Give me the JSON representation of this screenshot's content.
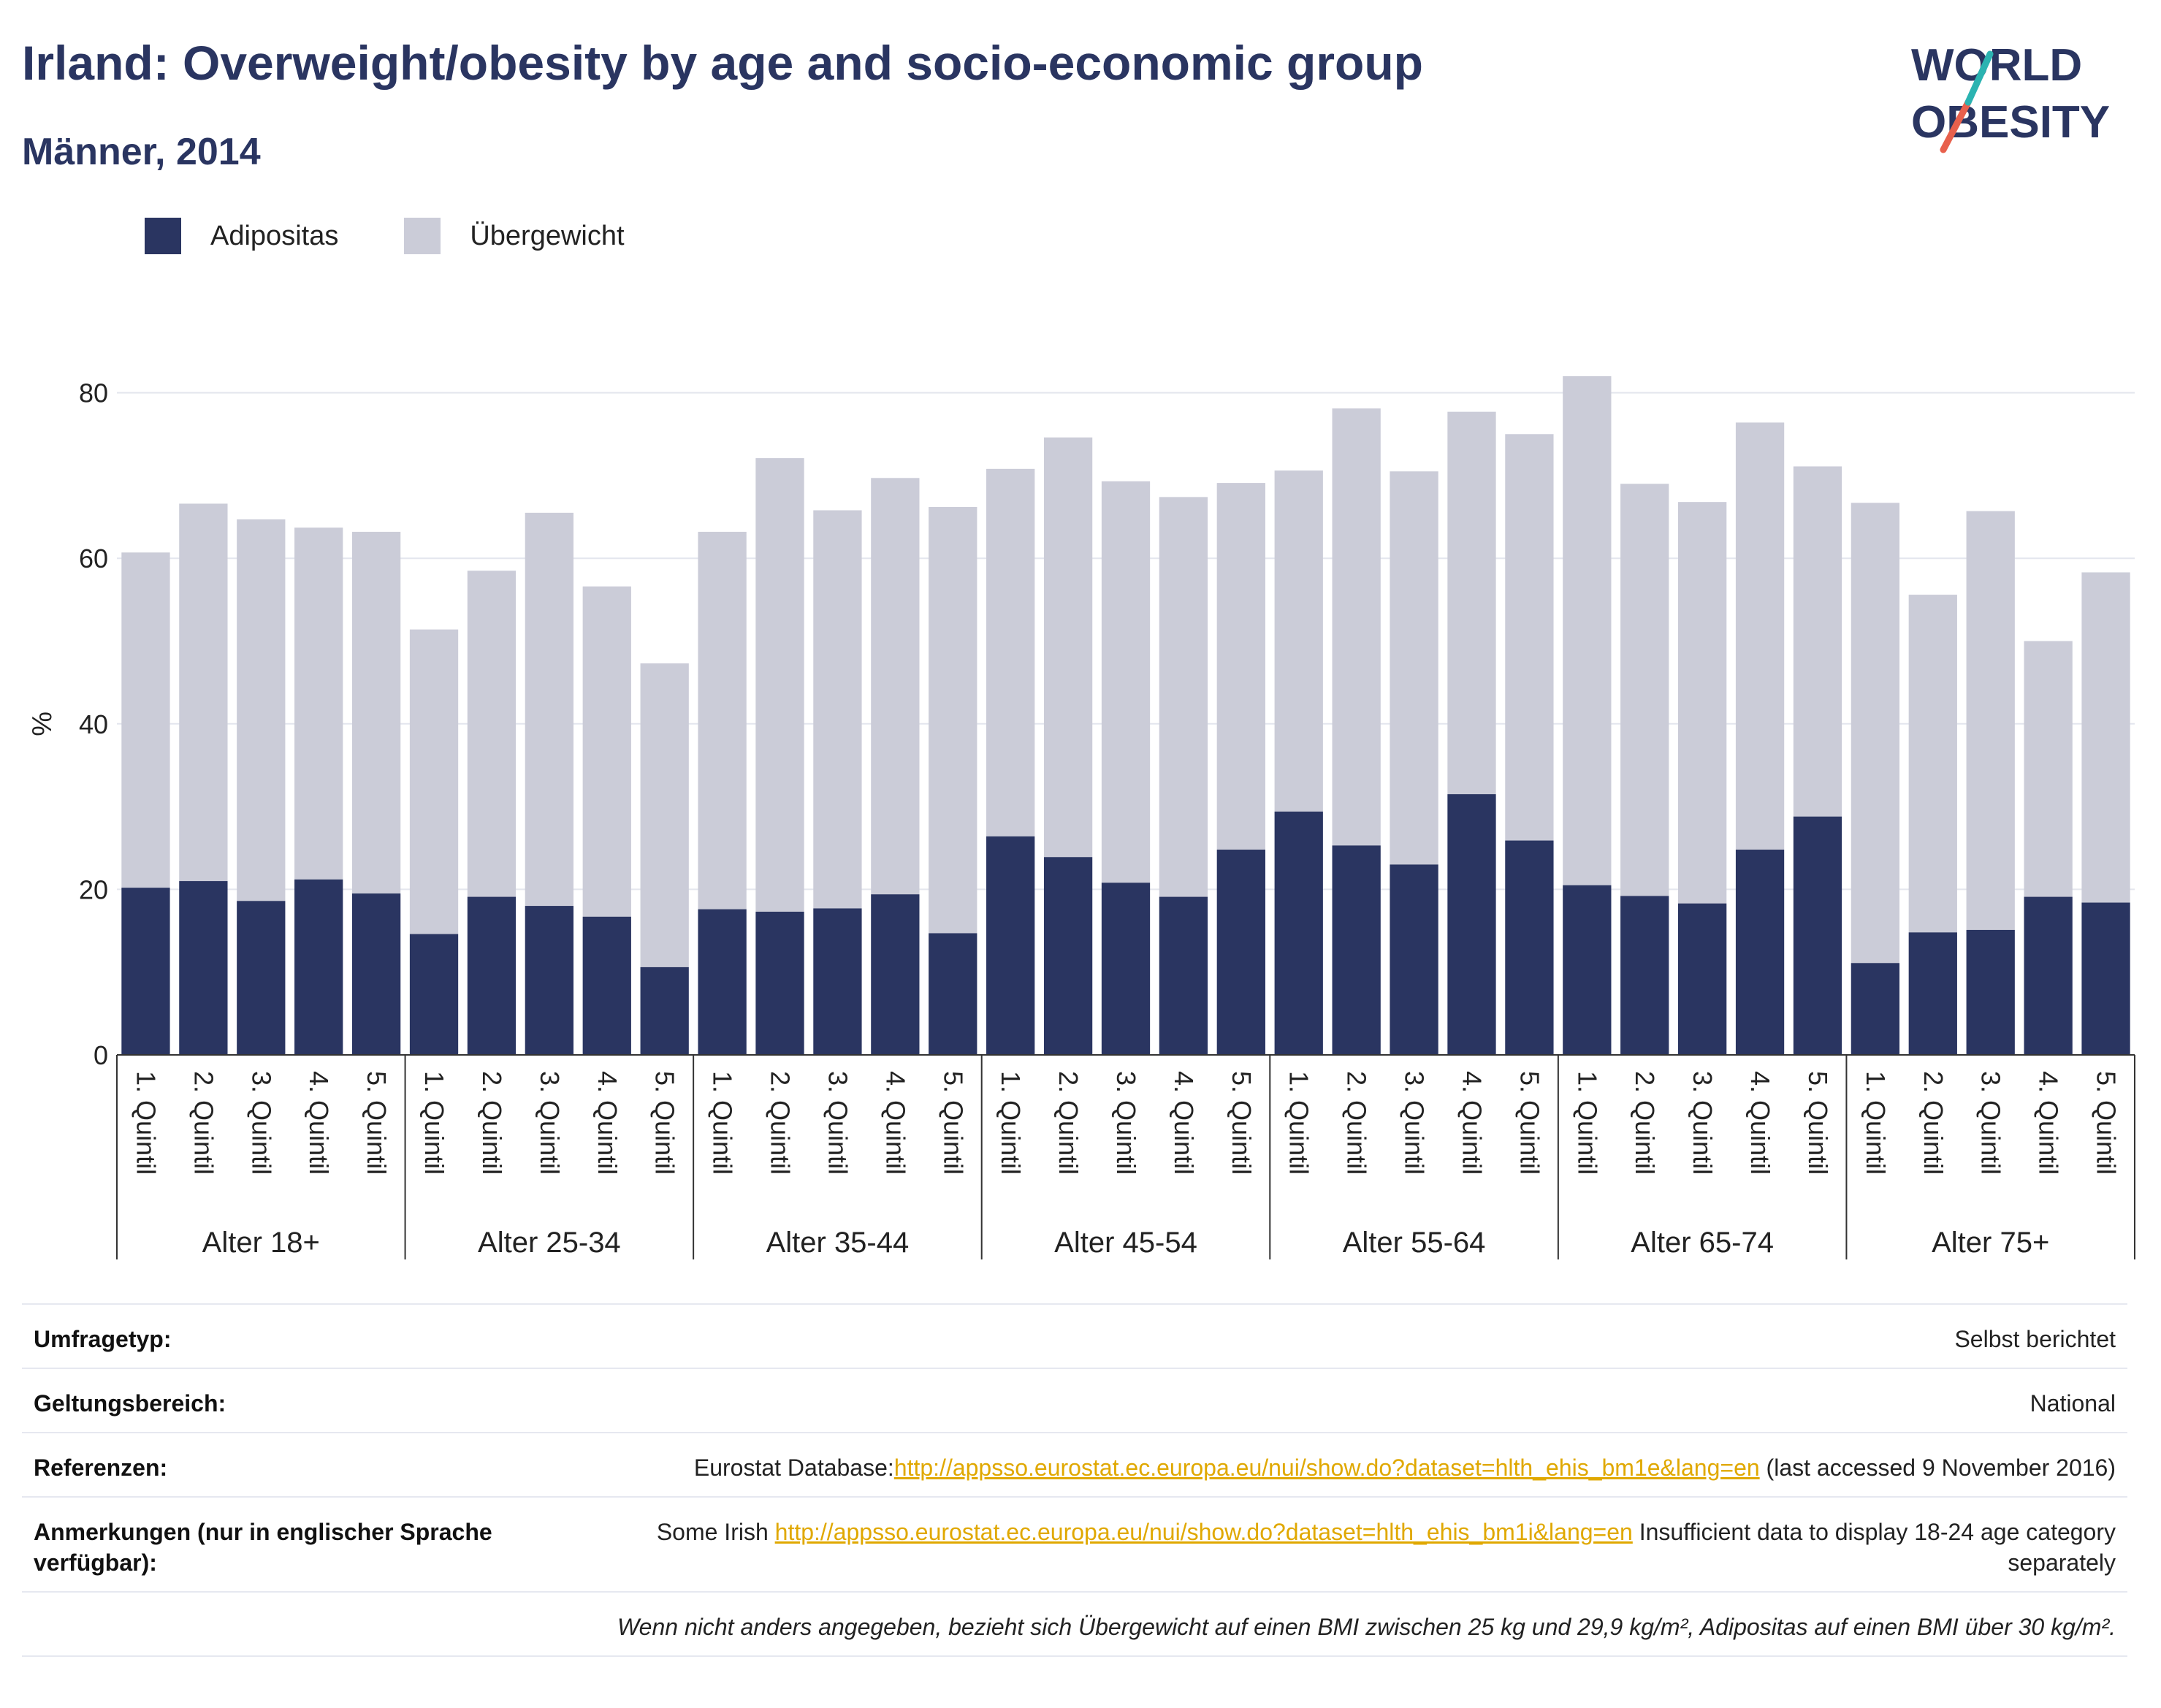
{
  "header": {
    "title": "Irland: Overweight/obesity by age and socio-economic group",
    "subtitle": "Männer, 2014"
  },
  "logo": {
    "line1": "WORLD",
    "line2": "OBESITY"
  },
  "colors": {
    "obesity": "#2a3561",
    "overweight": "#cbccd8",
    "accent_teal": "#2bb3b1",
    "accent_red": "#e8604c"
  },
  "chart_data": {
    "type": "bar",
    "stacked": true,
    "ylabel": "%",
    "ylim": [
      0,
      90
    ],
    "yticks": [
      0,
      20,
      40,
      60,
      80
    ],
    "grid": true,
    "legend_position": "top-left",
    "legend": [
      "Adipositas",
      "Übergewicht"
    ],
    "subcategories": [
      "1. Quintil",
      "2. Quintil",
      "3. Quintil",
      "4. Quintil",
      "5. Quintil"
    ],
    "groups": [
      "Alter 18+",
      "Alter 25-34",
      "Alter 35-44",
      "Alter 45-54",
      "Alter 55-64",
      "Alter 65-74",
      "Alter 75+"
    ],
    "series": [
      {
        "name": "Adipositas",
        "values": [
          20.2,
          21.0,
          18.6,
          21.2,
          19.5,
          14.6,
          19.1,
          18.0,
          16.7,
          10.6,
          17.6,
          17.3,
          17.7,
          19.4,
          14.7,
          26.4,
          23.9,
          20.8,
          19.1,
          24.8,
          29.4,
          25.3,
          23.0,
          31.5,
          25.9,
          20.5,
          19.2,
          18.3,
          24.8,
          28.8,
          11.1,
          14.8,
          15.1,
          19.1,
          18.4
        ]
      },
      {
        "name": "Übergewicht",
        "values": [
          40.5,
          45.6,
          46.1,
          42.5,
          43.7,
          36.8,
          39.4,
          47.5,
          39.9,
          36.7,
          45.6,
          54.8,
          48.1,
          50.3,
          51.5,
          44.4,
          50.7,
          48.5,
          48.3,
          44.3,
          41.2,
          52.8,
          47.5,
          46.2,
          49.1,
          61.5,
          49.8,
          48.5,
          51.6,
          42.3,
          55.6,
          40.8,
          50.6,
          30.9,
          39.9
        ]
      }
    ]
  },
  "info": {
    "survey_type_label": "Umfragetyp:",
    "survey_type_value": "Selbst berichtet",
    "scope_label": "Geltungsbereich:",
    "scope_value": "National",
    "references_label": "Referenzen:",
    "references_prefix": "Eurostat Database:",
    "references_link": "http://appsso.eurostat.ec.europa.eu/nui/show.do?dataset=hlth_ehis_bm1e&lang=en",
    "references_suffix": " (last accessed 9 November 2016)",
    "notes_label": "Anmerkungen (nur in englischer Sprache verfügbar):",
    "notes_prefix": "Some Irish ",
    "notes_link": "http://appsso.eurostat.ec.europa.eu/nui/show.do?dataset=hlth_ehis_bm1i&lang=en",
    "notes_suffix": " Insufficient data to display 18-24 age category separately",
    "footnote": "Wenn nicht anders angegeben, bezieht sich Übergewicht auf einen BMI zwischen 25 kg und 29,9 kg/m², Adipositas auf einen BMI über 30 kg/m²."
  }
}
